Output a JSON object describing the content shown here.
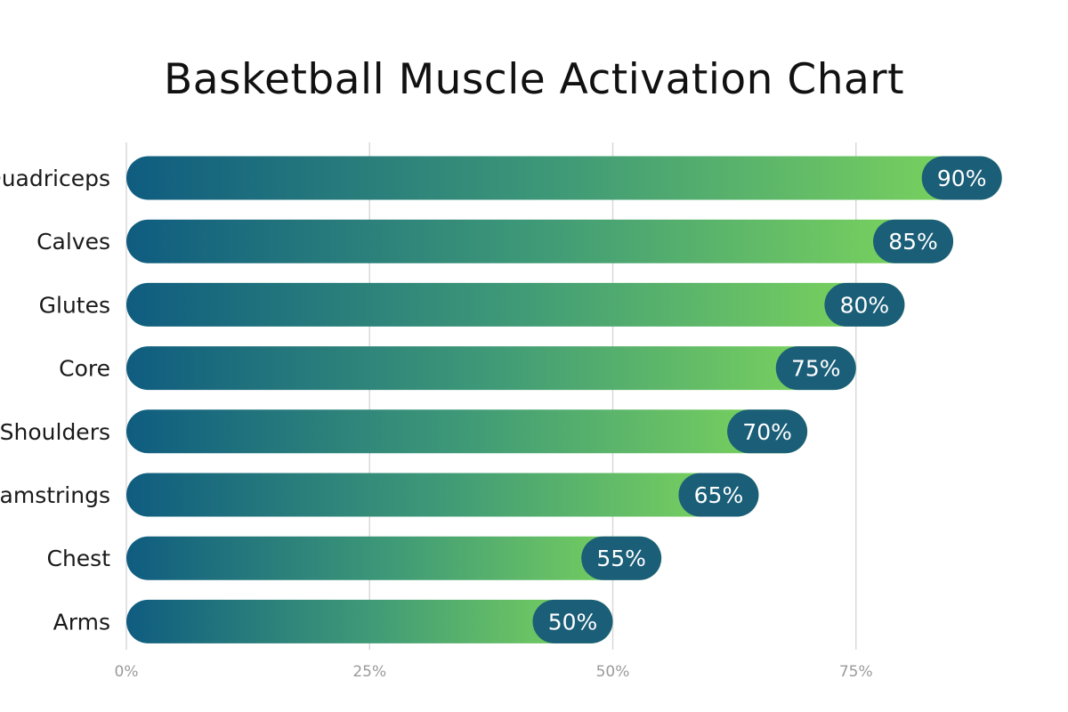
{
  "chart_data": {
    "type": "bar",
    "orientation": "horizontal",
    "title": "Basketball Muscle Activation Chart",
    "categories": [
      "Quadriceps",
      "Calves",
      "Glutes",
      "Core",
      "Shoulders",
      "Hamstrings",
      "Chest",
      "Arms"
    ],
    "values": [
      90,
      85,
      80,
      75,
      70,
      65,
      55,
      50
    ],
    "value_labels": [
      "90%",
      "85%",
      "80%",
      "75%",
      "70%",
      "65%",
      "55%",
      "50%"
    ],
    "x_ticks": [
      0,
      25,
      50,
      75
    ],
    "x_tick_labels": [
      "0%",
      "25%",
      "50%",
      "75%"
    ],
    "xlim": [
      0,
      100
    ],
    "grid": true,
    "legend": "none",
    "colors": {
      "bar_start": "#0f5c80",
      "bar_mid": "#3f9a77",
      "bar_end": "#80d85a",
      "value_badge": "#1b5e78"
    }
  }
}
